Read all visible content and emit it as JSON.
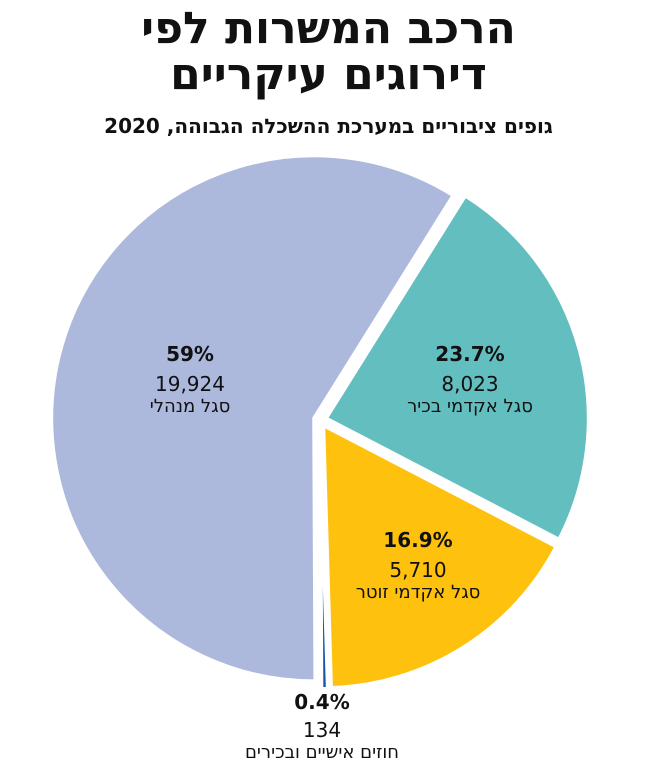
{
  "title_line1": "הרכב המשרות לפי",
  "title_line2": "דירוגים עיקריים",
  "subtitle": "גופים ציבוריים במערכת ההשכלה הגבוהה, 2020",
  "chart_data": {
    "type": "pie",
    "title": "הרכב המשרות לפי דירוגים עיקריים",
    "subtitle": "גופים ציבוריים במערכת ההשכלה הגבוהה, 2020",
    "slices": [
      {
        "label": "סגל אקדמי בכיר",
        "value": 8023,
        "percent": "23.7%",
        "color": "#62bebf"
      },
      {
        "label": "סגל אקדמי זוטר",
        "value": 5710,
        "percent": "16.9%",
        "color": "#fec10e"
      },
      {
        "label": "חוזים אישיים ובכירים",
        "value": 134,
        "percent": "0.4%",
        "color": "#1457a8"
      },
      {
        "label": "סגל מנהלי",
        "value": 19924,
        "percent": "59%",
        "color": "#adb9dc"
      }
    ],
    "value_labels": [
      "8,023",
      "5,710",
      "134",
      "19,924"
    ]
  }
}
